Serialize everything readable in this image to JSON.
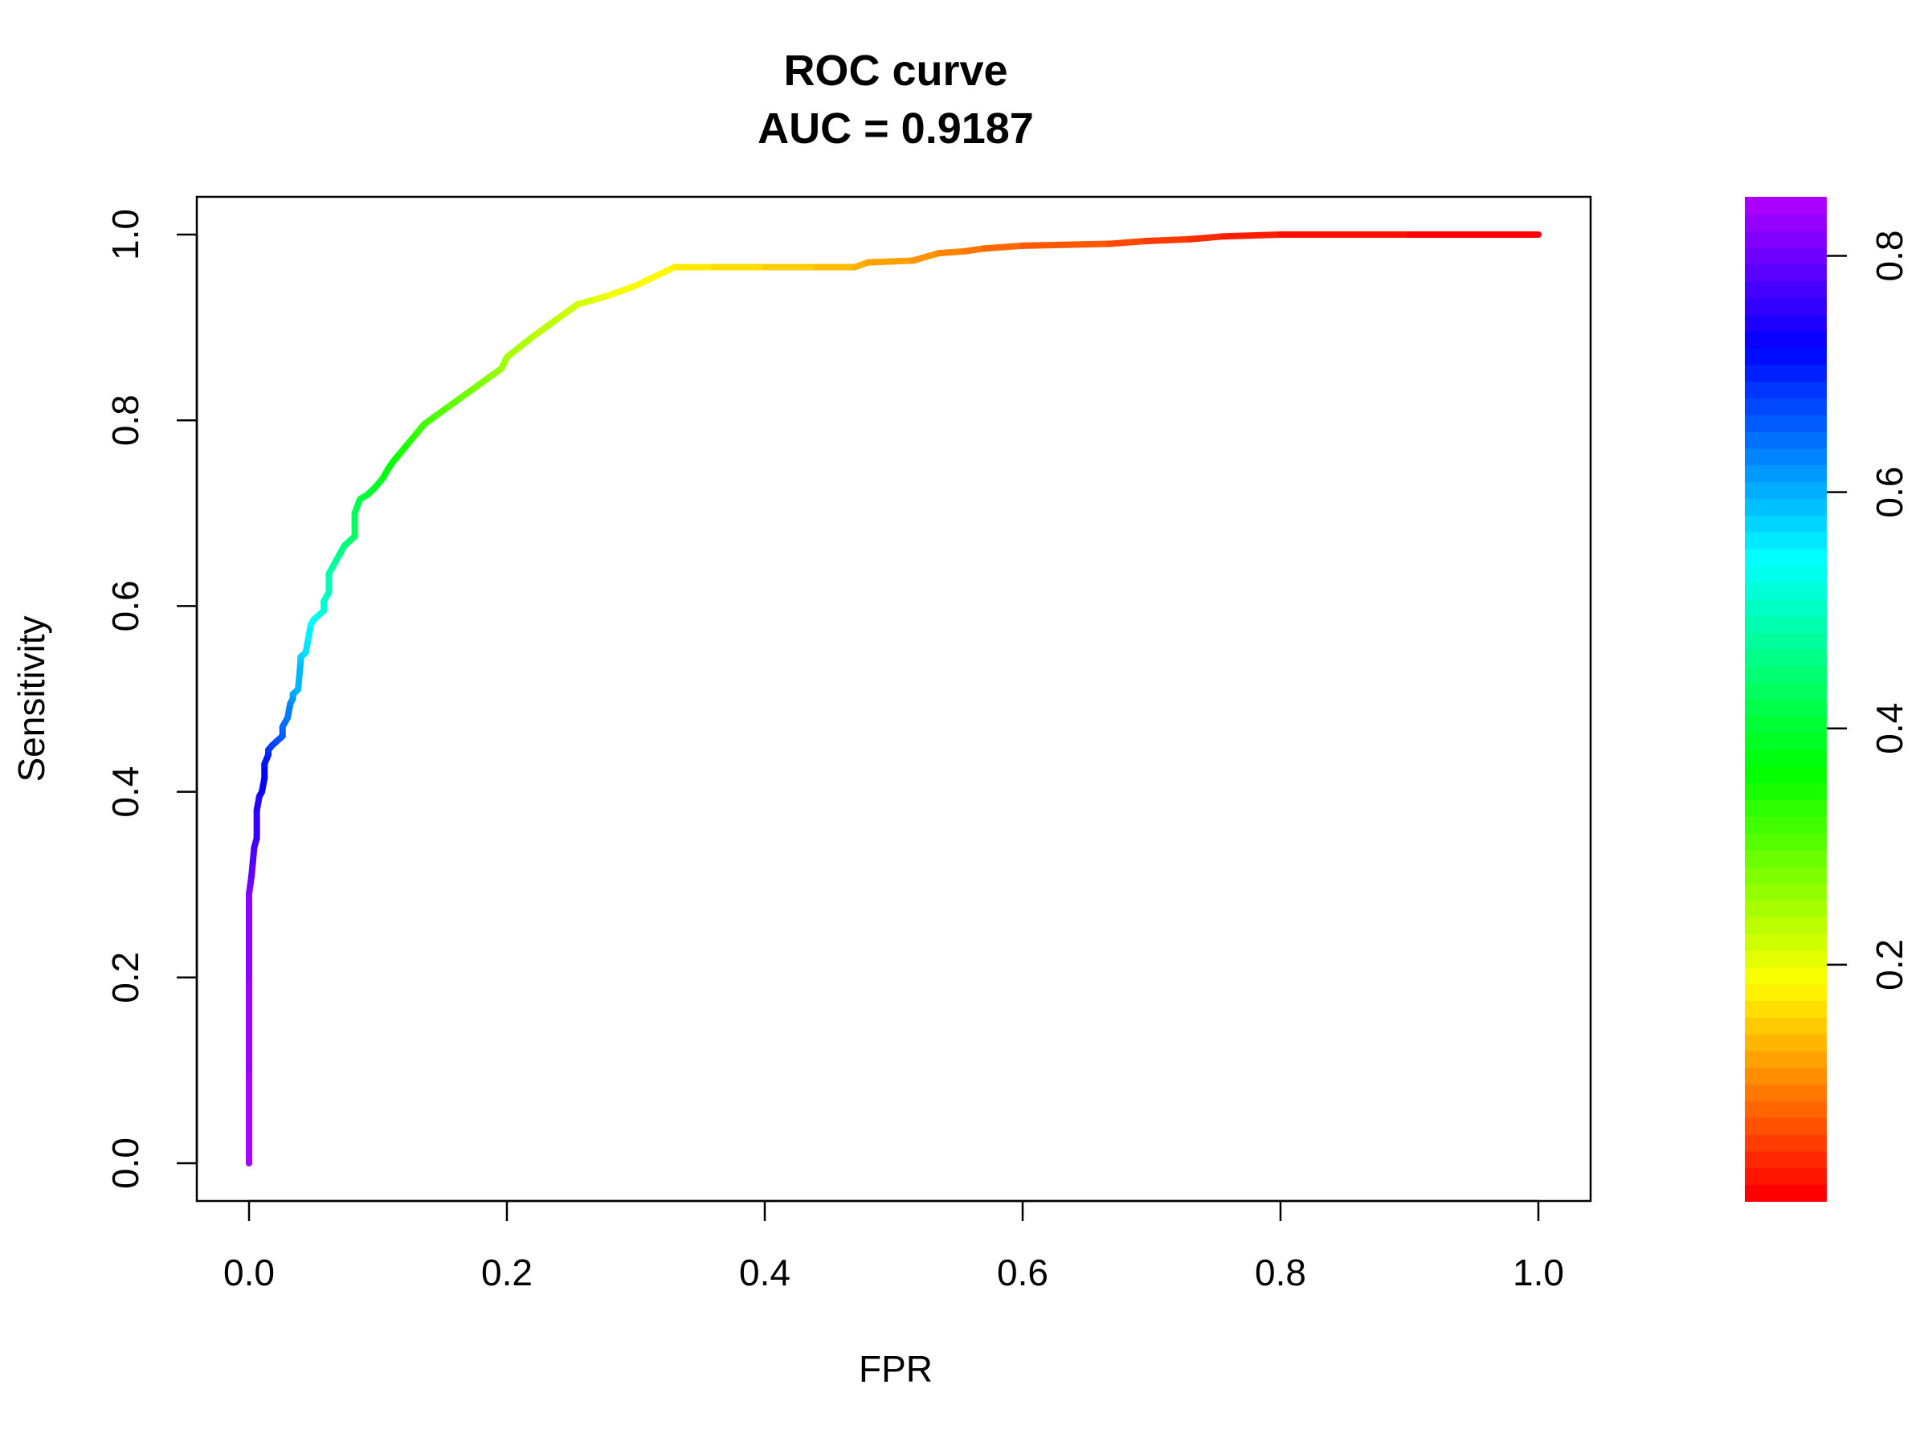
{
  "chart_data": {
    "type": "line",
    "title": "ROC curve",
    "subtitle": "AUC = 0.9187",
    "xlabel": "FPR",
    "ylabel": "Sensitivity",
    "xlim": [
      0,
      1
    ],
    "ylim": [
      0,
      1
    ],
    "x_ticks": [
      "0.0",
      "0.2",
      "0.4",
      "0.6",
      "0.8",
      "1.0"
    ],
    "y_ticks": [
      "0.0",
      "0.2",
      "0.4",
      "0.6",
      "0.8",
      "1.0"
    ],
    "grid": false,
    "series": [
      {
        "x": [
          0.0,
          0.0,
          0.0,
          0.0,
          0.001,
          0.002,
          0.003,
          0.004,
          0.006,
          0.006,
          0.008,
          0.01,
          0.012,
          0.012,
          0.015,
          0.015,
          0.018,
          0.022,
          0.026,
          0.026,
          0.03,
          0.032,
          0.034,
          0.034,
          0.038,
          0.04,
          0.04,
          0.044,
          0.046,
          0.048,
          0.05,
          0.054,
          0.058,
          0.058,
          0.062,
          0.062,
          0.066,
          0.07,
          0.074,
          0.078,
          0.082,
          0.082,
          0.086,
          0.092,
          0.098,
          0.104,
          0.108,
          0.112,
          0.118,
          0.124,
          0.13,
          0.136,
          0.146,
          0.156,
          0.166,
          0.176,
          0.186,
          0.196,
          0.2,
          0.22,
          0.24,
          0.255,
          0.268,
          0.28,
          0.3,
          0.33,
          0.36,
          0.4,
          0.44,
          0.47,
          0.48,
          0.515,
          0.535,
          0.555,
          0.57,
          0.6,
          0.667,
          0.695,
          0.73,
          0.755,
          0.8,
          0.9,
          1.0
        ],
        "y": [
          0.0,
          0.1,
          0.2,
          0.29,
          0.3,
          0.31,
          0.325,
          0.34,
          0.35,
          0.38,
          0.395,
          0.4,
          0.415,
          0.43,
          0.44,
          0.445,
          0.45,
          0.455,
          0.46,
          0.47,
          0.48,
          0.495,
          0.5,
          0.505,
          0.51,
          0.54,
          0.545,
          0.55,
          0.565,
          0.58,
          0.585,
          0.59,
          0.595,
          0.605,
          0.615,
          0.635,
          0.645,
          0.655,
          0.665,
          0.67,
          0.675,
          0.7,
          0.715,
          0.72,
          0.728,
          0.738,
          0.748,
          0.756,
          0.766,
          0.776,
          0.786,
          0.796,
          0.806,
          0.816,
          0.826,
          0.836,
          0.846,
          0.856,
          0.868,
          0.89,
          0.91,
          0.925,
          0.93,
          0.935,
          0.945,
          0.965,
          0.965,
          0.965,
          0.965,
          0.965,
          0.97,
          0.972,
          0.98,
          0.982,
          0.985,
          0.988,
          0.99,
          0.993,
          0.995,
          0.998,
          1.0,
          1.0,
          1.0
        ]
      }
    ],
    "colorbar": {
      "ticks": [
        "0.2",
        "0.4",
        "0.6",
        "0.8"
      ],
      "tick_values": [
        0.2,
        0.4,
        0.6,
        0.8
      ],
      "range": [
        0.0,
        0.85
      ],
      "palette": "rainbow red-yellow-green-cyan-blue-magenta"
    },
    "colors": {
      "low": "#ff0000",
      "high": "#cc00ff",
      "axis": "#000000"
    }
  }
}
